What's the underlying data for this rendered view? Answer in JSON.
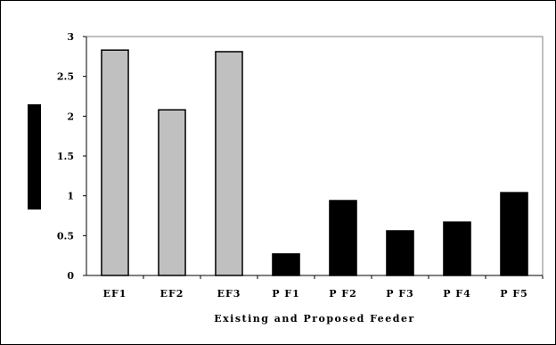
{
  "chart_data": {
    "type": "bar",
    "xlabel": "Existing and Proposed Feeder",
    "ylabel": "",
    "ylim": [
      0,
      3
    ],
    "yticks": [
      "0",
      "0.5",
      "1",
      "1.5",
      "2",
      "2.5",
      "3"
    ],
    "ytick_values": [
      0,
      0.5,
      1,
      1.5,
      2,
      2.5,
      3
    ],
    "grid": false,
    "legend": "none",
    "categories": [
      "EF1",
      "EF2",
      "EF3",
      "P F1",
      "P F2",
      "P F3",
      "P F4",
      "P F5"
    ],
    "values": [
      2.83,
      2.08,
      2.81,
      0.27,
      0.94,
      0.56,
      0.67,
      1.04
    ],
    "bar_colors": [
      "#c0c0c0",
      "#c0c0c0",
      "#c0c0c0",
      "#000000",
      "#000000",
      "#000000",
      "#000000",
      "#000000"
    ],
    "bar_edge_color": "#000000",
    "ylabel_placeholder_color": "#000000"
  }
}
